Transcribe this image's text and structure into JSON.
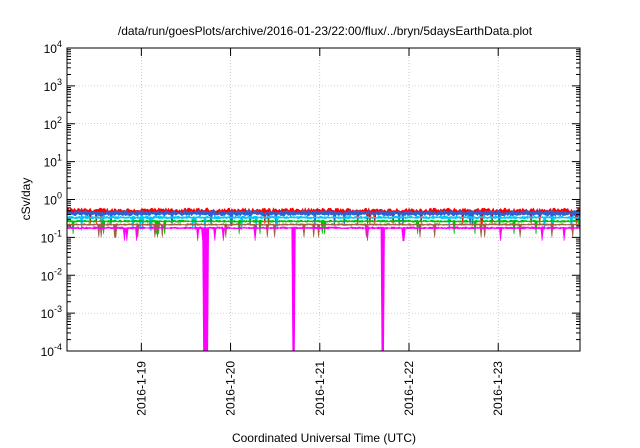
{
  "chart_data": {
    "type": "area",
    "title": "/data/run/goesPlots/archive/2016-01-23/22:00/flux/../bryn/5daysEarthData.plot",
    "xlabel": "Coordinated Universal Time (UTC)",
    "ylabel": "cSv/day",
    "yscale": "log",
    "ylim": [
      0.0001,
      10000
    ],
    "xlim": [
      "2016-01-18 04:00",
      "2016-01-23 22:00"
    ],
    "y_ticks": [
      {
        "base": "10",
        "exp": "4",
        "value": 10000
      },
      {
        "base": "10",
        "exp": "3",
        "value": 1000
      },
      {
        "base": "10",
        "exp": "2",
        "value": 100
      },
      {
        "base": "10",
        "exp": "1",
        "value": 10
      },
      {
        "base": "10",
        "exp": "0",
        "value": 1
      },
      {
        "base": "10",
        "exp": "-1",
        "value": 0.1
      },
      {
        "base": "10",
        "exp": "-2",
        "value": 0.01
      },
      {
        "base": "10",
        "exp": "-3",
        "value": 0.001
      },
      {
        "base": "10",
        "exp": "-4",
        "value": 0.0001
      }
    ],
    "x_ticks": [
      "2016-1-19",
      "2016-1-20",
      "2016-1-21",
      "2016-1-22",
      "2016-1-23"
    ],
    "grid": true,
    "series": [
      {
        "color": "#ff0000",
        "base": 0.5,
        "spread": 0.15
      },
      {
        "color": "#3060d0",
        "base": 0.45,
        "spread": 0.12
      },
      {
        "color": "#00c8ff",
        "base": 0.34,
        "spread": 0.06
      },
      {
        "color": "#00c000",
        "base": 0.27,
        "spread": 0.05
      },
      {
        "color": "#a06040",
        "base": 0.22,
        "spread": 0.04
      },
      {
        "color": "#ff00ff",
        "base": 0.18,
        "spread": 0.05,
        "dropouts": [
          "2016-01-19 17:00",
          "2016-01-19 17:45",
          "2016-01-20 17:00",
          "2016-01-21 17:00"
        ]
      }
    ]
  }
}
